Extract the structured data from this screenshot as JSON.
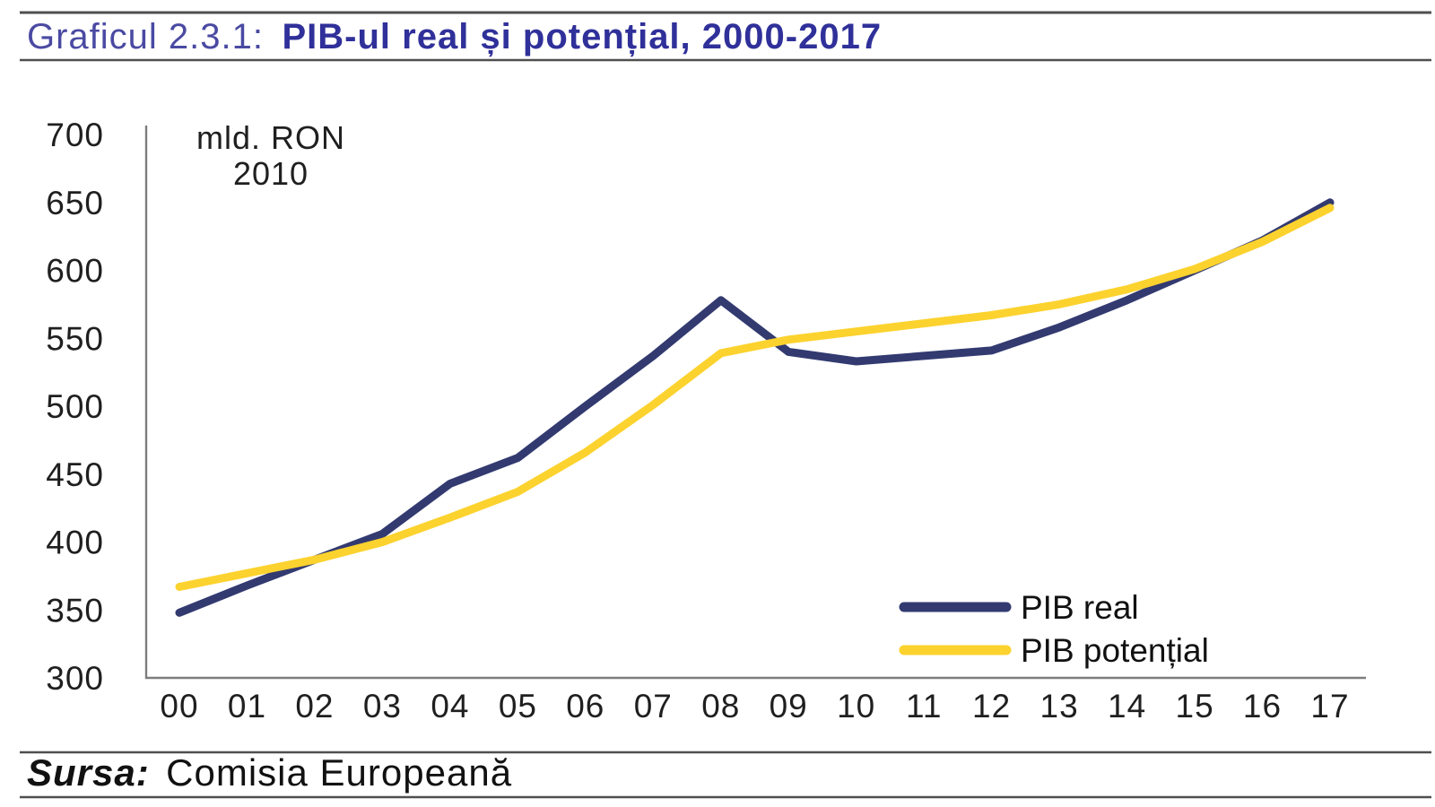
{
  "title": {
    "label": "Graficul 2.3.1:",
    "heading": "PIB-ul real și potențial, 2000-2017"
  },
  "source": {
    "label": "Sursa:",
    "text": "Comisia Europeană"
  },
  "chart_data": {
    "type": "line",
    "title": "PIB-ul real și potențial, 2000-2017",
    "unit_label_lines": [
      "mld. RON",
      "2010"
    ],
    "xlabel": "",
    "ylabel": "mld. RON 2010",
    "categories": [
      "00",
      "01",
      "02",
      "03",
      "04",
      "05",
      "06",
      "07",
      "08",
      "09",
      "10",
      "11",
      "12",
      "13",
      "14",
      "15",
      "16",
      "17"
    ],
    "series": [
      {
        "name": "PIB real",
        "color": "#323a70",
        "values": [
          348,
          368,
          387,
          406,
          443,
          462,
          500,
          537,
          578,
          540,
          533,
          537,
          541,
          558,
          578,
          600,
          622,
          650
        ]
      },
      {
        "name": "PIB potențial",
        "color": "#fcd22e",
        "values": [
          367,
          377,
          387,
          400,
          418,
          437,
          466,
          501,
          539,
          549,
          555,
          561,
          567,
          575,
          586,
          601,
          621,
          646
        ]
      }
    ],
    "ylim": [
      300,
      700
    ],
    "yticks": [
      300,
      350,
      400,
      450,
      500,
      550,
      600,
      650,
      700
    ],
    "grid": false,
    "legend_position": "bottom-right"
  }
}
